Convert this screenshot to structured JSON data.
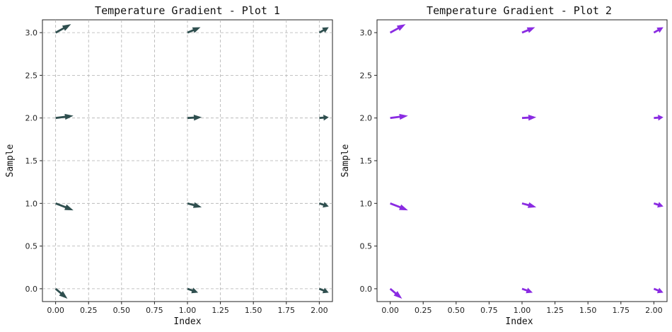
{
  "chart_data": [
    {
      "type": "quiver",
      "title": "Temperature Gradient - Plot 1",
      "xlabel": "Index",
      "ylabel": "Sample",
      "xlim": [
        -0.1,
        2.1
      ],
      "ylim": [
        -0.15,
        3.15
      ],
      "xticks": [
        "0.00",
        "0.25",
        "0.50",
        "0.75",
        "1.00",
        "1.25",
        "1.50",
        "1.75",
        "2.00"
      ],
      "yticks": [
        "0.0",
        "0.5",
        "1.0",
        "1.5",
        "2.0",
        "2.5",
        "3.0"
      ],
      "grid": true,
      "color": "#2f4f4f",
      "vectors": [
        {
          "x": 0,
          "y": 0,
          "u": 0.1,
          "v": -0.13
        },
        {
          "x": 0,
          "y": 1,
          "u": 0.15,
          "v": -0.09
        },
        {
          "x": 0,
          "y": 2,
          "u": 0.15,
          "v": 0.03
        },
        {
          "x": 0,
          "y": 3,
          "u": 0.13,
          "v": 0.11
        },
        {
          "x": 1,
          "y": 0,
          "u": 0.09,
          "v": -0.05
        },
        {
          "x": 1,
          "y": 1,
          "u": 0.12,
          "v": -0.05
        },
        {
          "x": 1,
          "y": 2,
          "u": 0.12,
          "v": 0.01
        },
        {
          "x": 1,
          "y": 3,
          "u": 0.11,
          "v": 0.07
        },
        {
          "x": 2,
          "y": 0,
          "u": 0.08,
          "v": -0.05
        },
        {
          "x": 2,
          "y": 1,
          "u": 0.08,
          "v": -0.04
        },
        {
          "x": 2,
          "y": 2,
          "u": 0.08,
          "v": 0.01
        },
        {
          "x": 2,
          "y": 3,
          "u": 0.08,
          "v": 0.07
        }
      ]
    },
    {
      "type": "quiver",
      "title": "Temperature Gradient - Plot 2",
      "xlabel": "Index",
      "ylabel": "Sample",
      "xlim": [
        -0.1,
        2.1
      ],
      "ylim": [
        -0.15,
        3.15
      ],
      "xticks": [
        "0.00",
        "0.25",
        "0.50",
        "0.75",
        "1.00",
        "1.25",
        "1.50",
        "1.75",
        "2.00"
      ],
      "yticks": [
        "0.0",
        "0.5",
        "1.0",
        "1.5",
        "2.0",
        "2.5",
        "3.0"
      ],
      "grid": false,
      "color": "#8a2be2",
      "vectors": [
        {
          "x": 0,
          "y": 0,
          "u": 0.1,
          "v": -0.13
        },
        {
          "x": 0,
          "y": 1,
          "u": 0.15,
          "v": -0.09
        },
        {
          "x": 0,
          "y": 2,
          "u": 0.15,
          "v": 0.03
        },
        {
          "x": 0,
          "y": 3,
          "u": 0.13,
          "v": 0.11
        },
        {
          "x": 1,
          "y": 0,
          "u": 0.09,
          "v": -0.05
        },
        {
          "x": 1,
          "y": 1,
          "u": 0.12,
          "v": -0.05
        },
        {
          "x": 1,
          "y": 2,
          "u": 0.12,
          "v": 0.01
        },
        {
          "x": 1,
          "y": 3,
          "u": 0.11,
          "v": 0.07
        },
        {
          "x": 2,
          "y": 0,
          "u": 0.08,
          "v": -0.05
        },
        {
          "x": 2,
          "y": 1,
          "u": 0.08,
          "v": -0.04
        },
        {
          "x": 2,
          "y": 2,
          "u": 0.08,
          "v": 0.01
        },
        {
          "x": 2,
          "y": 3,
          "u": 0.08,
          "v": 0.07
        }
      ]
    }
  ]
}
